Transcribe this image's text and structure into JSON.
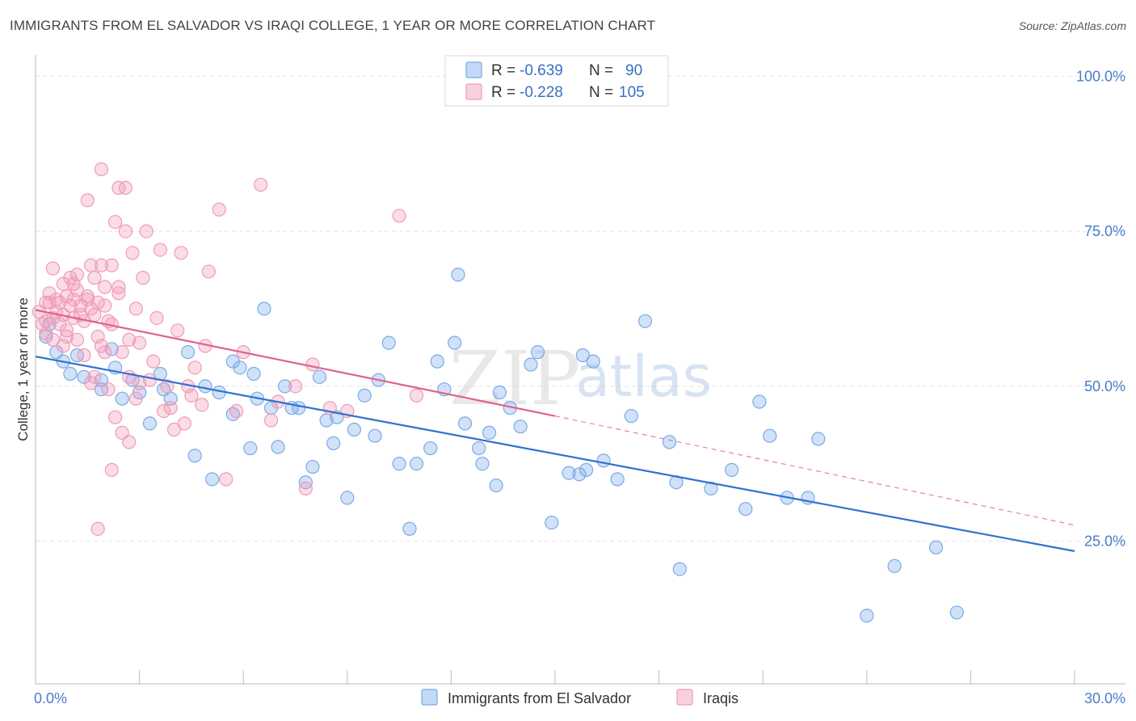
{
  "title": "IMMIGRANTS FROM EL SALVADOR VS IRAQI COLLEGE, 1 YEAR OR MORE CORRELATION CHART",
  "source": "Source: ZipAtlas.com",
  "watermark": {
    "zip": "ZIP",
    "atlas": "atlas"
  },
  "legend_top": [
    {
      "r_label": "R =",
      "r_value": "-0.639",
      "n_label": "N =",
      "n_value": "90",
      "color": "#7aaae8"
    },
    {
      "r_label": "R =",
      "r_value": "-0.228",
      "n_label": "N =",
      "n_value": "105",
      "color": "#f09ab8"
    }
  ],
  "chart_data": {
    "type": "scatter",
    "title": "IMMIGRANTS FROM EL SALVADOR VS IRAQI COLLEGE, 1 YEAR OR MORE CORRELATION CHART",
    "xlabel": "",
    "ylabel": "College, 1 year or more",
    "xlim": [
      0,
      30
    ],
    "ylim": [
      2,
      102
    ],
    "x_tick_labels": [
      {
        "value": 0,
        "label": "0.0%"
      },
      {
        "value": 30,
        "label": "30.0%"
      }
    ],
    "y_tick_labels": [
      {
        "value": 25,
        "label": "25.0%"
      },
      {
        "value": 50,
        "label": "50.0%"
      },
      {
        "value": 75,
        "label": "75.0%"
      },
      {
        "value": 100,
        "label": "100.0%"
      }
    ],
    "grid": true,
    "legend_position": "top-center",
    "series": [
      {
        "name": "Immigrants from El Salvador",
        "color": "#7aaae8",
        "line_color": "#2f72d0",
        "trend": {
          "x": [
            0,
            30
          ],
          "y": [
            54.8,
            23.4
          ],
          "dashed_from": null
        },
        "points": [
          [
            0.3,
            58.0
          ],
          [
            0.6,
            55.5
          ],
          [
            0.8,
            54.0
          ],
          [
            1.2,
            55.0
          ],
          [
            1.4,
            51.5
          ],
          [
            1.9,
            51.0
          ],
          [
            1.9,
            49.5
          ],
          [
            2.3,
            53.0
          ],
          [
            2.5,
            48.0
          ],
          [
            2.8,
            51.0
          ],
          [
            3.0,
            49.0
          ],
          [
            3.3,
            44.0
          ],
          [
            3.7,
            49.5
          ],
          [
            3.9,
            48.0
          ],
          [
            4.4,
            55.5
          ],
          [
            4.6,
            38.8
          ],
          [
            4.9,
            50.0
          ],
          [
            5.1,
            35.0
          ],
          [
            5.3,
            49.0
          ],
          [
            5.7,
            45.5
          ],
          [
            5.9,
            53.0
          ],
          [
            6.2,
            40.0
          ],
          [
            6.4,
            48.0
          ],
          [
            6.6,
            62.5
          ],
          [
            6.8,
            46.5
          ],
          [
            7.0,
            40.2
          ],
          [
            7.2,
            50.0
          ],
          [
            7.4,
            46.5
          ],
          [
            7.6,
            46.5
          ],
          [
            7.8,
            34.5
          ],
          [
            8.0,
            37.0
          ],
          [
            8.2,
            51.5
          ],
          [
            8.6,
            40.8
          ],
          [
            8.7,
            45.0
          ],
          [
            9.0,
            32.0
          ],
          [
            9.2,
            43.0
          ],
          [
            9.5,
            48.5
          ],
          [
            9.8,
            42.0
          ],
          [
            10.2,
            57.0
          ],
          [
            10.5,
            37.5
          ],
          [
            10.8,
            27.0
          ],
          [
            11.0,
            37.5
          ],
          [
            11.4,
            40.0
          ],
          [
            11.6,
            54.0
          ],
          [
            11.8,
            49.5
          ],
          [
            12.2,
            68.0
          ],
          [
            12.4,
            44.0
          ],
          [
            12.8,
            40.0
          ],
          [
            12.9,
            37.5
          ],
          [
            13.3,
            34.0
          ],
          [
            13.4,
            49.0
          ],
          [
            13.7,
            46.5
          ],
          [
            14.0,
            43.5
          ],
          [
            14.3,
            53.5
          ],
          [
            14.5,
            55.5
          ],
          [
            14.9,
            28.0
          ],
          [
            15.4,
            36.0
          ],
          [
            15.7,
            35.8
          ],
          [
            15.9,
            36.5
          ],
          [
            16.1,
            54.0
          ],
          [
            16.4,
            38.0
          ],
          [
            16.8,
            35.0
          ],
          [
            17.2,
            45.2
          ],
          [
            17.6,
            60.5
          ],
          [
            18.3,
            41.0
          ],
          [
            18.5,
            34.5
          ],
          [
            18.6,
            20.5
          ],
          [
            19.5,
            33.5
          ],
          [
            20.1,
            36.5
          ],
          [
            20.5,
            30.2
          ],
          [
            20.9,
            47.5
          ],
          [
            21.2,
            42.0
          ],
          [
            21.7,
            32.0
          ],
          [
            22.3,
            32.0
          ],
          [
            22.6,
            41.5
          ],
          [
            24.0,
            13.0
          ],
          [
            24.8,
            21.0
          ],
          [
            26.0,
            24.0
          ],
          [
            26.6,
            13.5
          ],
          [
            12.1,
            57.0
          ],
          [
            3.6,
            52.0
          ],
          [
            5.7,
            54.0
          ],
          [
            1.0,
            52.0
          ],
          [
            2.2,
            56.0
          ],
          [
            0.4,
            60.0
          ],
          [
            8.4,
            44.5
          ],
          [
            6.3,
            52.0
          ],
          [
            9.9,
            51.0
          ],
          [
            15.8,
            55.0
          ],
          [
            13.1,
            42.5
          ]
        ]
      },
      {
        "name": "Iraqis",
        "color": "#f09ab8",
        "line_color": "#e0628e",
        "trend": {
          "x": [
            0,
            15
          ],
          "y": [
            62.3,
            45.2
          ],
          "dashed_to": [
            30,
            27.6
          ]
        },
        "points": [
          [
            0.1,
            62.0
          ],
          [
            0.2,
            60.0
          ],
          [
            0.3,
            63.5
          ],
          [
            0.3,
            58.5
          ],
          [
            0.4,
            65.0
          ],
          [
            0.5,
            61.0
          ],
          [
            0.5,
            69.0
          ],
          [
            0.6,
            64.0
          ],
          [
            0.7,
            63.5
          ],
          [
            0.7,
            60.0
          ],
          [
            0.8,
            66.5
          ],
          [
            0.8,
            56.5
          ],
          [
            0.9,
            64.5
          ],
          [
            0.9,
            58.0
          ],
          [
            1.0,
            67.5
          ],
          [
            1.1,
            61.0
          ],
          [
            1.1,
            64.0
          ],
          [
            1.2,
            65.5
          ],
          [
            1.2,
            57.5
          ],
          [
            1.3,
            63.0
          ],
          [
            1.4,
            60.5
          ],
          [
            1.4,
            55.0
          ],
          [
            1.5,
            80.0
          ],
          [
            1.5,
            64.5
          ],
          [
            1.6,
            62.5
          ],
          [
            1.6,
            50.5
          ],
          [
            1.7,
            67.5
          ],
          [
            1.7,
            61.5
          ],
          [
            1.7,
            51.5
          ],
          [
            1.8,
            63.5
          ],
          [
            1.8,
            27.0
          ],
          [
            1.9,
            69.5
          ],
          [
            1.9,
            56.5
          ],
          [
            1.9,
            85.0
          ],
          [
            2.0,
            66.0
          ],
          [
            2.0,
            55.5
          ],
          [
            2.1,
            60.5
          ],
          [
            2.1,
            49.5
          ],
          [
            2.2,
            69.5
          ],
          [
            2.2,
            36.5
          ],
          [
            2.3,
            76.5
          ],
          [
            2.3,
            45.0
          ],
          [
            2.4,
            82.0
          ],
          [
            2.4,
            65.0
          ],
          [
            2.5,
            55.5
          ],
          [
            2.5,
            42.5
          ],
          [
            2.6,
            82.0
          ],
          [
            2.6,
            75.0
          ],
          [
            2.7,
            57.5
          ],
          [
            2.7,
            51.5
          ],
          [
            2.8,
            71.5
          ],
          [
            2.9,
            48.0
          ],
          [
            3.0,
            50.5
          ],
          [
            3.1,
            67.5
          ],
          [
            3.2,
            75.0
          ],
          [
            3.4,
            54.0
          ],
          [
            3.5,
            61.0
          ],
          [
            3.6,
            72.0
          ],
          [
            3.7,
            46.0
          ],
          [
            3.8,
            50.0
          ],
          [
            3.9,
            46.5
          ],
          [
            4.1,
            59.0
          ],
          [
            4.2,
            71.5
          ],
          [
            4.3,
            44.0
          ],
          [
            4.4,
            50.0
          ],
          [
            4.6,
            53.0
          ],
          [
            4.8,
            47.0
          ],
          [
            4.9,
            56.5
          ],
          [
            5.0,
            68.5
          ],
          [
            5.3,
            78.5
          ],
          [
            5.5,
            35.0
          ],
          [
            6.0,
            55.5
          ],
          [
            6.5,
            82.5
          ],
          [
            7.0,
            47.5
          ],
          [
            7.5,
            50.0
          ],
          [
            8.0,
            53.5
          ],
          [
            8.5,
            46.5
          ],
          [
            9.0,
            46.0
          ],
          [
            10.5,
            77.5
          ],
          [
            11.0,
            48.5
          ],
          [
            0.3,
            60.5
          ],
          [
            0.6,
            62.0
          ],
          [
            1.0,
            63.0
          ],
          [
            1.3,
            61.5
          ],
          [
            2.0,
            63.0
          ],
          [
            2.4,
            66.0
          ],
          [
            1.5,
            64.0
          ],
          [
            0.9,
            59.0
          ],
          [
            0.5,
            57.5
          ],
          [
            1.8,
            58.0
          ],
          [
            2.7,
            41.0
          ],
          [
            3.3,
            51.0
          ],
          [
            4.0,
            43.0
          ],
          [
            5.8,
            46.0
          ],
          [
            7.8,
            33.5
          ],
          [
            1.2,
            68.0
          ],
          [
            0.8,
            61.5
          ],
          [
            2.2,
            60.0
          ],
          [
            3.0,
            57.0
          ],
          [
            4.5,
            48.5
          ],
          [
            6.8,
            44.5
          ],
          [
            1.6,
            69.5
          ],
          [
            2.9,
            62.5
          ],
          [
            0.4,
            63.5
          ],
          [
            1.1,
            66.5
          ]
        ]
      }
    ]
  }
}
